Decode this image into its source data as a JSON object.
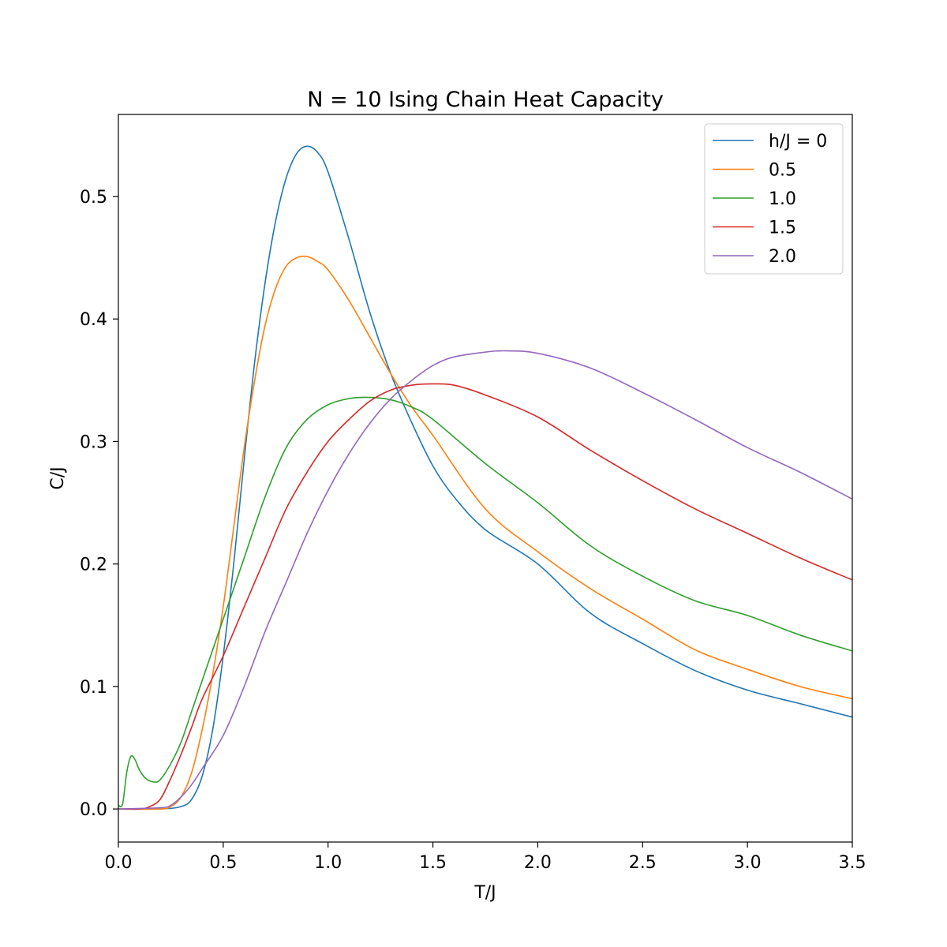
{
  "chart_data": {
    "type": "line",
    "title": "N = 10 Ising Chain Heat Capacity",
    "xlabel": "T/J",
    "ylabel": "C/J",
    "xlim": [
      0.0,
      3.5
    ],
    "ylim": [
      -0.027,
      0.567
    ],
    "xticks": [
      "0.0",
      "0.5",
      "1.0",
      "1.5",
      "2.0",
      "2.5",
      "3.0",
      "3.5"
    ],
    "yticks": [
      "0.0",
      "0.1",
      "0.2",
      "0.3",
      "0.4",
      "0.5"
    ],
    "grid": false,
    "legend_position": "upper right",
    "series": [
      {
        "name": "h/J = 0",
        "color": "#1f77b4",
        "points": [
          [
            0.0,
            0.0
          ],
          [
            0.2,
            0.0
          ],
          [
            0.3,
            0.002
          ],
          [
            0.35,
            0.008
          ],
          [
            0.4,
            0.027
          ],
          [
            0.45,
            0.065
          ],
          [
            0.5,
            0.125
          ],
          [
            0.55,
            0.2
          ],
          [
            0.6,
            0.285
          ],
          [
            0.65,
            0.365
          ],
          [
            0.7,
            0.43
          ],
          [
            0.75,
            0.48
          ],
          [
            0.8,
            0.515
          ],
          [
            0.85,
            0.535
          ],
          [
            0.9,
            0.541
          ],
          [
            0.95,
            0.536
          ],
          [
            1.0,
            0.52
          ],
          [
            1.1,
            0.465
          ],
          [
            1.2,
            0.405
          ],
          [
            1.3,
            0.355
          ],
          [
            1.4,
            0.315
          ],
          [
            1.5,
            0.28
          ],
          [
            1.6,
            0.255
          ],
          [
            1.75,
            0.228
          ],
          [
            2.0,
            0.2
          ],
          [
            2.25,
            0.16
          ],
          [
            2.5,
            0.135
          ],
          [
            2.75,
            0.113
          ],
          [
            3.0,
            0.097
          ],
          [
            3.25,
            0.086
          ],
          [
            3.5,
            0.075
          ]
        ]
      },
      {
        "name": "0.5",
        "color": "#ff7f0e",
        "points": [
          [
            0.0,
            0.0
          ],
          [
            0.2,
            0.0
          ],
          [
            0.25,
            0.002
          ],
          [
            0.3,
            0.01
          ],
          [
            0.35,
            0.03
          ],
          [
            0.4,
            0.065
          ],
          [
            0.45,
            0.11
          ],
          [
            0.5,
            0.165
          ],
          [
            0.55,
            0.23
          ],
          [
            0.6,
            0.295
          ],
          [
            0.65,
            0.35
          ],
          [
            0.7,
            0.395
          ],
          [
            0.75,
            0.425
          ],
          [
            0.8,
            0.443
          ],
          [
            0.85,
            0.45
          ],
          [
            0.9,
            0.451
          ],
          [
            0.95,
            0.447
          ],
          [
            1.0,
            0.44
          ],
          [
            1.1,
            0.415
          ],
          [
            1.2,
            0.385
          ],
          [
            1.3,
            0.355
          ],
          [
            1.4,
            0.328
          ],
          [
            1.5,
            0.305
          ],
          [
            1.75,
            0.245
          ],
          [
            2.0,
            0.21
          ],
          [
            2.25,
            0.18
          ],
          [
            2.5,
            0.155
          ],
          [
            2.75,
            0.13
          ],
          [
            3.0,
            0.114
          ],
          [
            3.25,
            0.1
          ],
          [
            3.5,
            0.09
          ]
        ]
      },
      {
        "name": "1.0",
        "color": "#2ca02c",
        "points": [
          [
            0.0,
            0.003
          ],
          [
            0.02,
            0.004
          ],
          [
            0.04,
            0.03
          ],
          [
            0.06,
            0.043
          ],
          [
            0.08,
            0.04
          ],
          [
            0.1,
            0.032
          ],
          [
            0.13,
            0.025
          ],
          [
            0.17,
            0.022
          ],
          [
            0.2,
            0.024
          ],
          [
            0.25,
            0.037
          ],
          [
            0.3,
            0.055
          ],
          [
            0.35,
            0.08
          ],
          [
            0.4,
            0.105
          ],
          [
            0.45,
            0.13
          ],
          [
            0.5,
            0.155
          ],
          [
            0.55,
            0.18
          ],
          [
            0.6,
            0.205
          ],
          [
            0.7,
            0.255
          ],
          [
            0.8,
            0.295
          ],
          [
            0.9,
            0.318
          ],
          [
            1.0,
            0.33
          ],
          [
            1.1,
            0.335
          ],
          [
            1.2,
            0.336
          ],
          [
            1.3,
            0.334
          ],
          [
            1.4,
            0.328
          ],
          [
            1.5,
            0.318
          ],
          [
            1.75,
            0.282
          ],
          [
            2.0,
            0.25
          ],
          [
            2.25,
            0.215
          ],
          [
            2.5,
            0.19
          ],
          [
            2.75,
            0.17
          ],
          [
            3.0,
            0.158
          ],
          [
            3.25,
            0.142
          ],
          [
            3.5,
            0.129
          ]
        ]
      },
      {
        "name": "1.5",
        "color": "#d62728",
        "points": [
          [
            0.0,
            0.0
          ],
          [
            0.1,
            0.0
          ],
          [
            0.15,
            0.002
          ],
          [
            0.2,
            0.008
          ],
          [
            0.25,
            0.025
          ],
          [
            0.3,
            0.045
          ],
          [
            0.35,
            0.067
          ],
          [
            0.4,
            0.09
          ],
          [
            0.5,
            0.125
          ],
          [
            0.6,
            0.165
          ],
          [
            0.7,
            0.205
          ],
          [
            0.8,
            0.245
          ],
          [
            0.9,
            0.275
          ],
          [
            1.0,
            0.3
          ],
          [
            1.1,
            0.318
          ],
          [
            1.2,
            0.333
          ],
          [
            1.3,
            0.342
          ],
          [
            1.4,
            0.346
          ],
          [
            1.5,
            0.347
          ],
          [
            1.6,
            0.346
          ],
          [
            1.75,
            0.338
          ],
          [
            2.0,
            0.32
          ],
          [
            2.25,
            0.293
          ],
          [
            2.5,
            0.268
          ],
          [
            2.75,
            0.245
          ],
          [
            3.0,
            0.225
          ],
          [
            3.25,
            0.205
          ],
          [
            3.5,
            0.187
          ]
        ]
      },
      {
        "name": "2.0",
        "color": "#9467bd",
        "points": [
          [
            0.0,
            0.0
          ],
          [
            0.2,
            0.001
          ],
          [
            0.25,
            0.003
          ],
          [
            0.3,
            0.01
          ],
          [
            0.35,
            0.02
          ],
          [
            0.4,
            0.033
          ],
          [
            0.5,
            0.06
          ],
          [
            0.6,
            0.1
          ],
          [
            0.7,
            0.145
          ],
          [
            0.8,
            0.185
          ],
          [
            0.9,
            0.225
          ],
          [
            1.0,
            0.26
          ],
          [
            1.1,
            0.29
          ],
          [
            1.2,
            0.315
          ],
          [
            1.3,
            0.335
          ],
          [
            1.4,
            0.35
          ],
          [
            1.5,
            0.362
          ],
          [
            1.6,
            0.369
          ],
          [
            1.75,
            0.373
          ],
          [
            1.85,
            0.374
          ],
          [
            2.0,
            0.372
          ],
          [
            2.25,
            0.36
          ],
          [
            2.5,
            0.34
          ],
          [
            2.75,
            0.318
          ],
          [
            3.0,
            0.295
          ],
          [
            3.25,
            0.275
          ],
          [
            3.5,
            0.253
          ]
        ]
      }
    ]
  }
}
